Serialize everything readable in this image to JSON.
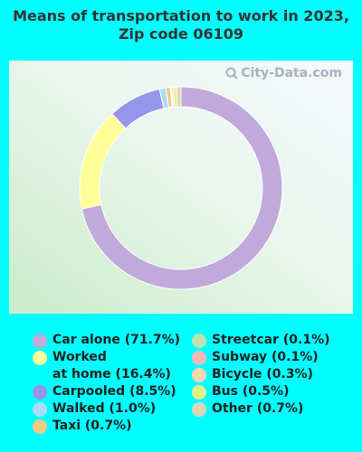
{
  "watermark": "City-Data.com",
  "chart_data": {
    "type": "pie",
    "donut": true,
    "title": "Means of transportation to work in 2023, Zip code 06109",
    "slices": [
      {
        "label": "Car alone (71.7%)",
        "value": 71.7,
        "color": "#c0aadb"
      },
      {
        "label": "Worked at home (16.4%)",
        "value": 16.4,
        "color": "#ffff99"
      },
      {
        "label": "Carpooled (8.5%)",
        "value": 8.5,
        "color": "#9595ee"
      },
      {
        "label": "Walked (1.0%)",
        "value": 1.0,
        "color": "#aadcf7"
      },
      {
        "label": "Taxi (0.7%)",
        "value": 0.7,
        "color": "#f7c987"
      },
      {
        "label": "Streetcar (0.1%)",
        "value": 0.1,
        "color": "#bfe0b0"
      },
      {
        "label": "Subway (0.1%)",
        "value": 0.1,
        "color": "#f4b8b8"
      },
      {
        "label": "Bicycle (0.3%)",
        "value": 0.3,
        "color": "#f9d6b0"
      },
      {
        "label": "Bus (0.5%)",
        "value": 0.5,
        "color": "#dff28a"
      },
      {
        "label": "Other (0.7%)",
        "value": 0.7,
        "color": "#dcd6b4"
      }
    ],
    "legend": {
      "left": [
        {
          "line1": "Car alone (71.7%)",
          "color": "#c0aadb"
        },
        {
          "line1": "Worked",
          "line2": "at home (16.4%)",
          "color": "#ffff99"
        },
        {
          "line1": "Carpooled (8.5%)",
          "color": "#9595ee"
        },
        {
          "line1": "Walked (1.0%)",
          "color": "#aadcf7"
        },
        {
          "line1": "Taxi (0.7%)",
          "color": "#f7c987"
        }
      ],
      "right": [
        {
          "line1": "Streetcar (0.1%)",
          "color": "#bfe0b0"
        },
        {
          "line1": "Subway (0.1%)",
          "color": "#f4b8b8"
        },
        {
          "line1": "Bicycle (0.3%)",
          "color": "#f9d6b0"
        },
        {
          "line1": "Bus (0.5%)",
          "color": "#dff28a"
        },
        {
          "line1": "Other (0.7%)",
          "color": "#dcd6b4"
        }
      ]
    }
  }
}
